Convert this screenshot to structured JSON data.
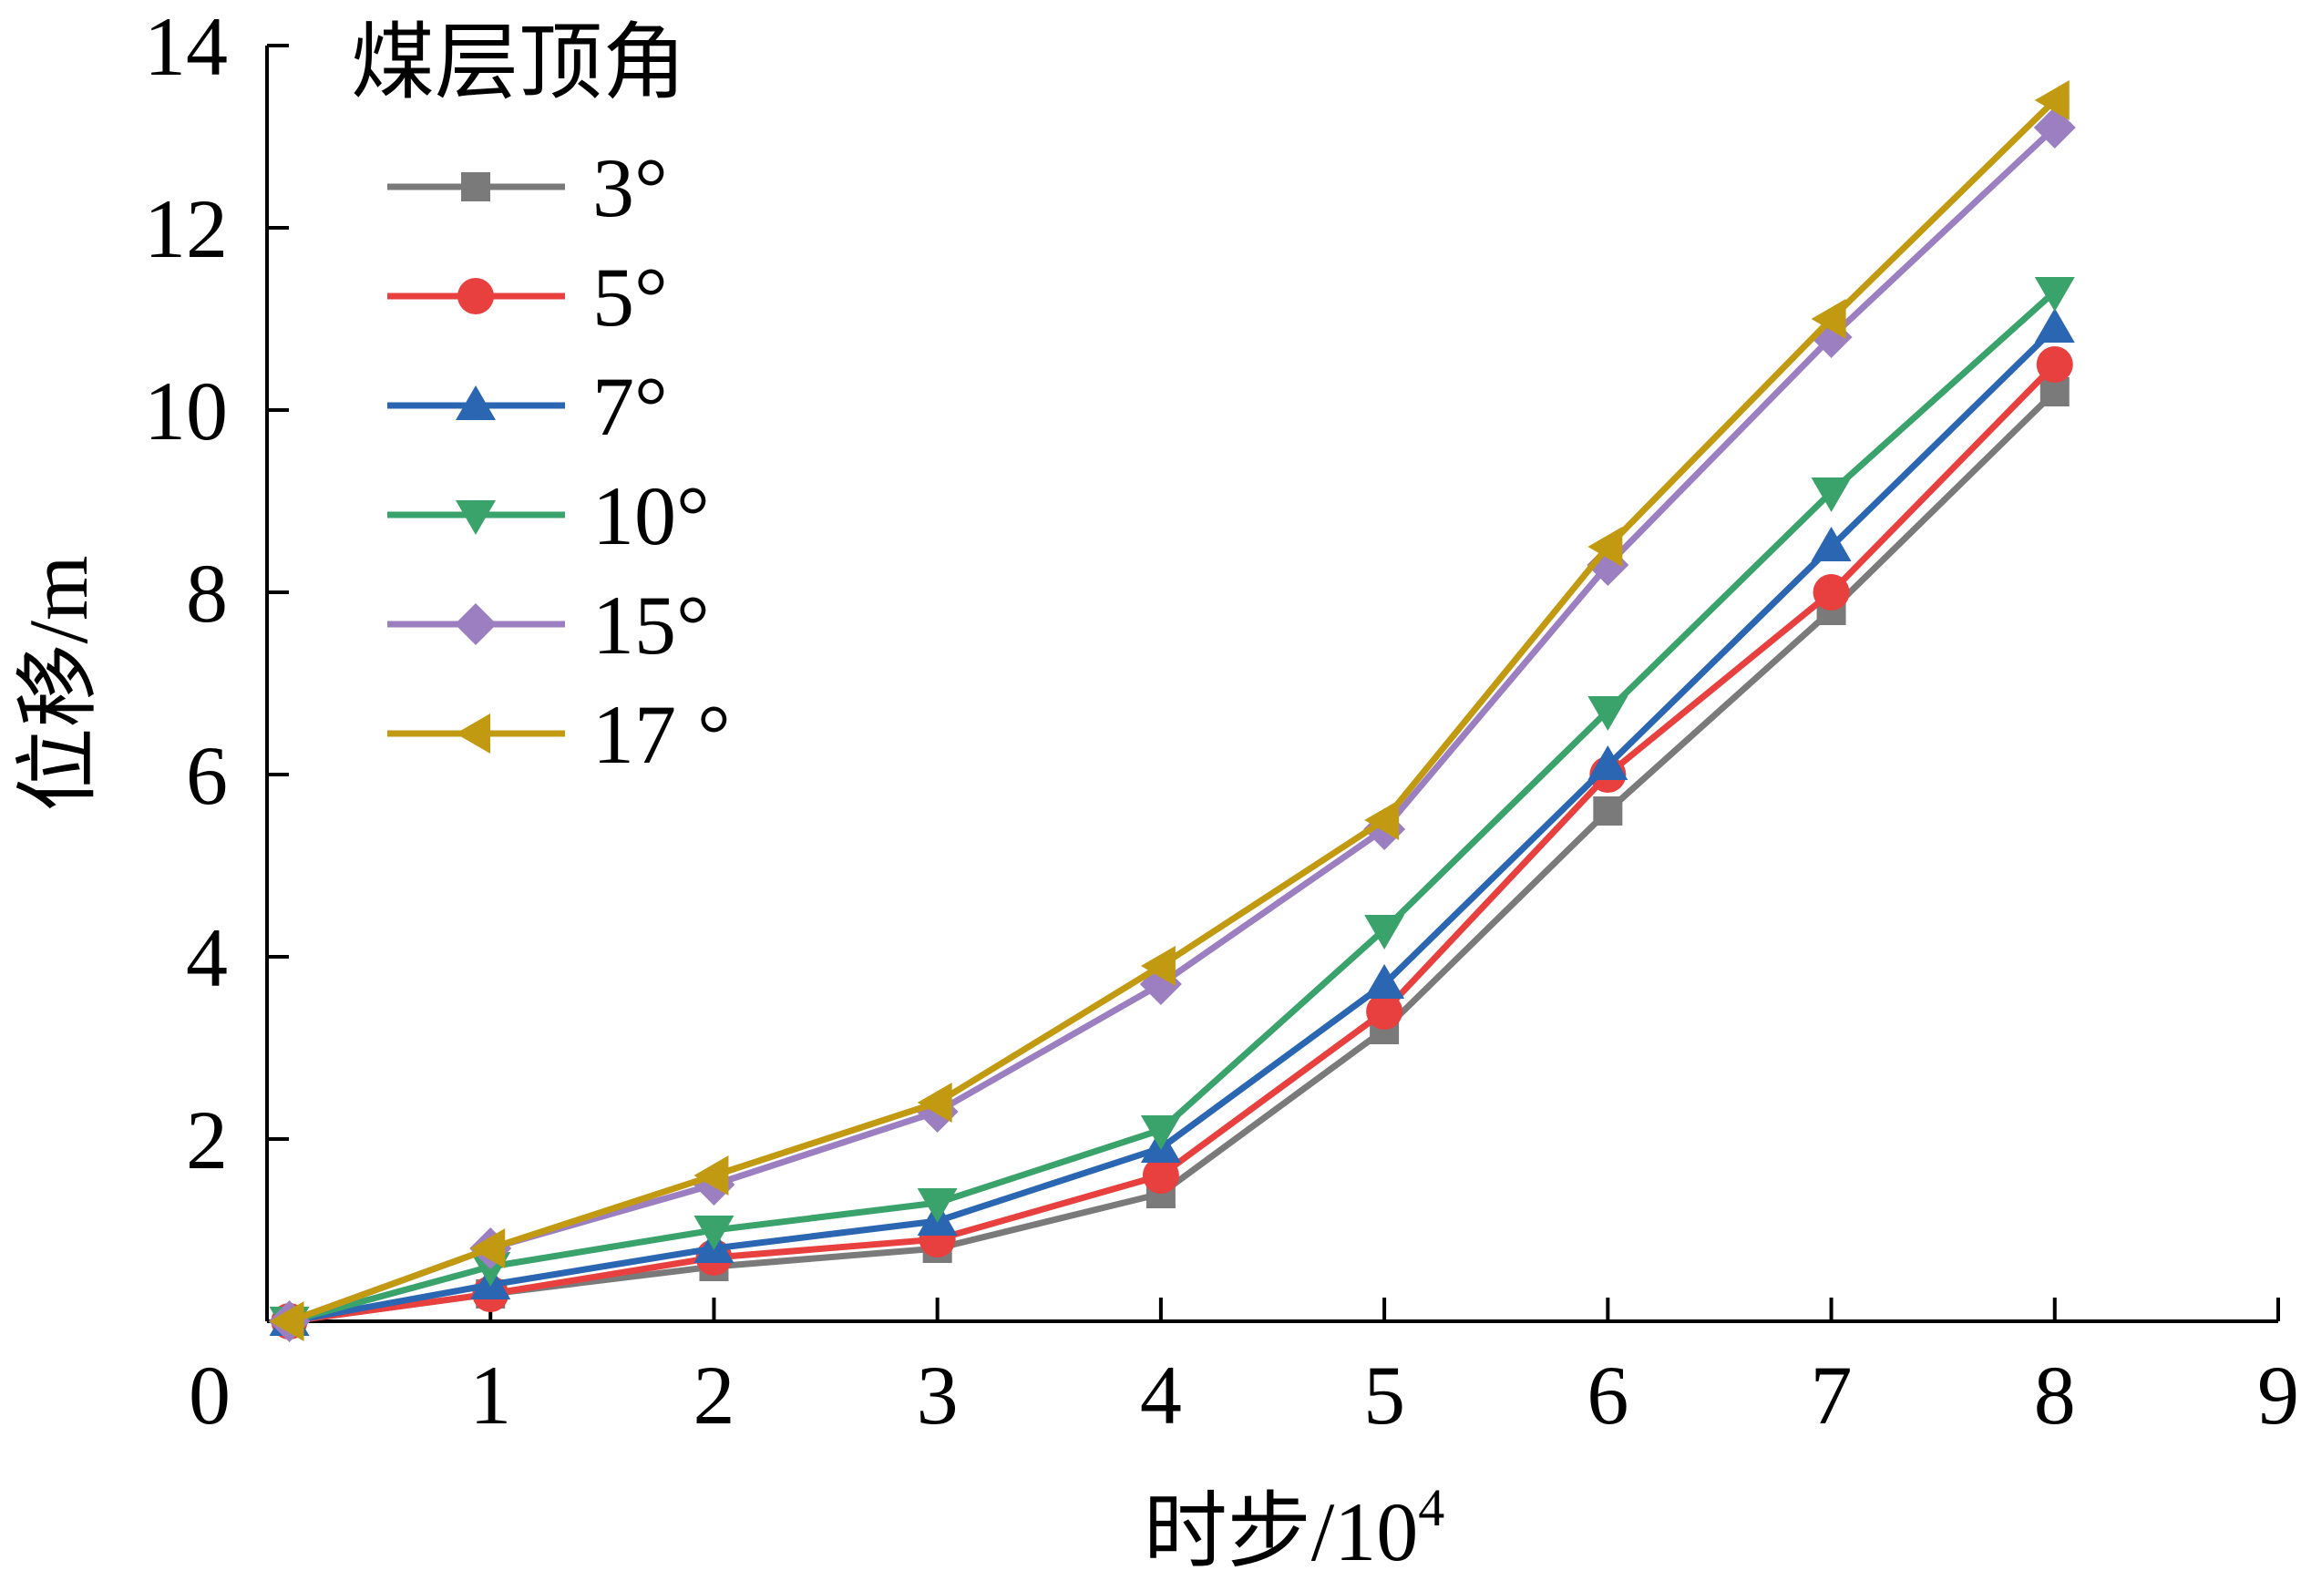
{
  "chart_data": {
    "type": "line",
    "xlabel": "时步/10",
    "xlabel_sup": "4",
    "ylabel": "位移/m",
    "xlim": [
      0,
      9
    ],
    "ylim": [
      0,
      14
    ],
    "xticks": [
      0,
      1,
      2,
      3,
      4,
      5,
      6,
      7,
      8,
      9
    ],
    "yticks": [
      2,
      4,
      6,
      8,
      10,
      12,
      14
    ],
    "grid": false,
    "legend": {
      "title": "煤层顶角",
      "placement": "top-left"
    },
    "x": [
      0.1,
      1,
      2,
      3,
      4,
      5,
      6,
      7,
      8
    ],
    "series": [
      {
        "name": "3°",
        "color": "#7a7a7a",
        "marker": "square",
        "values": [
          0,
          0.3,
          0.6,
          0.8,
          1.4,
          3.2,
          5.6,
          7.8,
          10.2
        ]
      },
      {
        "name": "5°",
        "color": "#e8403f",
        "marker": "circle",
        "values": [
          0,
          0.3,
          0.7,
          0.9,
          1.6,
          3.4,
          6.0,
          8.0,
          10.5
        ]
      },
      {
        "name": "7°",
        "color": "#2a66b2",
        "marker": "triangle-up",
        "values": [
          0,
          0.4,
          0.8,
          1.1,
          1.9,
          3.7,
          6.1,
          8.5,
          10.9
        ]
      },
      {
        "name": "10°",
        "color": "#3aa26b",
        "marker": "triangle-down",
        "values": [
          0,
          0.6,
          1.0,
          1.3,
          2.1,
          4.3,
          6.7,
          9.1,
          11.3
        ]
      },
      {
        "name": "15°",
        "color": "#9b7fc0",
        "marker": "diamond",
        "values": [
          0,
          0.8,
          1.5,
          2.3,
          3.7,
          5.4,
          8.3,
          10.8,
          13.1
        ]
      },
      {
        "name": "17 °",
        "color": "#c29a12",
        "marker": "triangle-left",
        "values": [
          0,
          0.8,
          1.6,
          2.4,
          3.9,
          5.5,
          8.5,
          11.0,
          13.4
        ]
      }
    ]
  }
}
